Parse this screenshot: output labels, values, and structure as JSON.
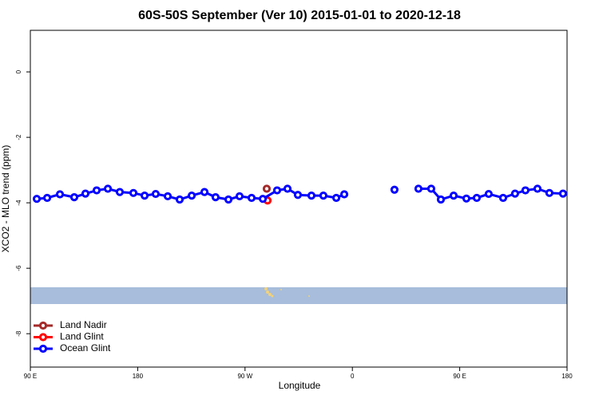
{
  "chart_data": {
    "type": "line",
    "title": "60S-50S September (Ver 10)   2015-01-01 to 2020-12-18",
    "xlabel": "Longitude",
    "ylabel": "XCO2 - MLO trend (ppm)",
    "xlim": [
      90,
      540
    ],
    "ylim": [
      -9.02,
      1.27
    ],
    "xticks": [
      {
        "value": 90,
        "label": "90 E"
      },
      {
        "value": 180,
        "label": "180"
      },
      {
        "value": 270,
        "label": "90 W"
      },
      {
        "value": 360,
        "label": "0"
      },
      {
        "value": 450,
        "label": "90 E"
      },
      {
        "value": 540,
        "label": "180"
      }
    ],
    "yticks": [
      0,
      -2,
      -4,
      -6,
      -8
    ],
    "legend": "bottom-left",
    "series": [
      {
        "name": "Land Nadir",
        "color": "#a52a2a",
        "x": [
          288.2
        ],
        "values": [
          -3.57
        ]
      },
      {
        "name": "Land Glint",
        "color": "#ff0000",
        "x": [
          288.9
        ],
        "values": [
          -3.93
        ]
      },
      {
        "name": "Ocean Glint",
        "color": "#0000ff",
        "x": [
          95.4,
          104.1,
          114.8,
          126.8,
          136.2,
          145.6,
          155,
          165,
          176.4,
          185.8,
          195.1,
          205.2,
          215.2,
          225.3,
          236,
          245.3,
          256.1,
          265.4,
          275.5,
          284.9,
          296.9,
          305.6,
          314.3,
          325.7,
          335.7,
          346.5,
          353.2,
          null,
          395.3,
          null,
          415.4,
          426.1,
          434.2,
          444.9,
          455.6,
          464.3,
          474.3,
          486.4,
          496.4,
          505.1,
          515.2,
          525.2,
          536.6
        ],
        "values": [
          -3.88,
          -3.85,
          -3.74,
          -3.83,
          -3.72,
          -3.62,
          -3.57,
          -3.67,
          -3.7,
          -3.78,
          -3.73,
          -3.8,
          -3.9,
          -3.78,
          -3.67,
          -3.83,
          -3.9,
          -3.8,
          -3.85,
          -3.88,
          -3.62,
          -3.57,
          -3.76,
          -3.78,
          -3.78,
          -3.85,
          -3.74,
          null,
          -3.6,
          null,
          -3.57,
          -3.57,
          -3.9,
          -3.78,
          -3.87,
          -3.85,
          -3.73,
          -3.85,
          -3.72,
          -3.62,
          -3.57,
          -3.7,
          -3.72
        ]
      }
    ]
  }
}
